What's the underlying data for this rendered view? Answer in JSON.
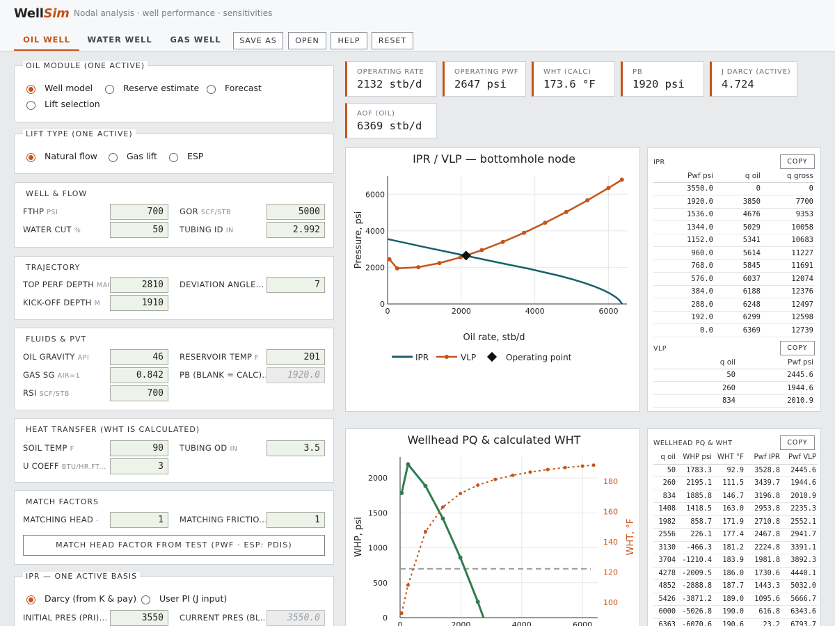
{
  "header": {
    "logo_part1": "Well",
    "logo_part2": "Sim",
    "subtitle": "Nodal analysis · well performance · sensitivities",
    "tabs": [
      {
        "label": "OIL WELL",
        "active": true
      },
      {
        "label": "WATER WELL",
        "active": false
      },
      {
        "label": "GAS WELL",
        "active": false
      }
    ],
    "buttons": [
      "SAVE AS",
      "OPEN",
      "HELP",
      "RESET"
    ]
  },
  "oil_module": {
    "title": "OIL MODULE (ONE ACTIVE)",
    "options": [
      {
        "label": "Well model",
        "selected": true
      },
      {
        "label": "Reserve estimate",
        "selected": false
      },
      {
        "label": "Forecast",
        "selected": false
      },
      {
        "label": "Lift selection",
        "selected": false
      }
    ]
  },
  "lift_type": {
    "title": "LIFT TYPE (ONE ACTIVE)",
    "options": [
      {
        "label": "Natural flow",
        "selected": true
      },
      {
        "label": "Gas lift",
        "selected": false
      },
      {
        "label": "ESP",
        "selected": false
      }
    ]
  },
  "well_flow": {
    "title": "WELL & FLOW",
    "fields": [
      {
        "label": "FTHP",
        "unit": "PSI",
        "value": "700"
      },
      {
        "label": "GOR",
        "unit": "SCF/STB",
        "value": "5000"
      },
      {
        "label": "WATER CUT",
        "unit": "%",
        "value": "50"
      },
      {
        "label": "TUBING ID",
        "unit": "IN",
        "value": "2.992"
      }
    ]
  },
  "trajectory": {
    "title": "TRAJECTORY",
    "fields": [
      {
        "label": "TOP PERF DEPTH",
        "unit": "MAH",
        "value": "2810"
      },
      {
        "label": "DEVIATION ANGLE...",
        "unit": "",
        "value": "7"
      },
      {
        "label": "KICK-OFF DEPTH",
        "unit": "M",
        "value": "1910"
      }
    ]
  },
  "fluids": {
    "title": "FLUIDS & PVT",
    "fields": [
      {
        "label": "OIL GRAVITY",
        "unit": "API",
        "value": "46"
      },
      {
        "label": "RESERVOIR TEMP",
        "unit": "F",
        "value": "201"
      },
      {
        "label": "GAS SG",
        "unit": "AIR=1",
        "value": "0.842"
      },
      {
        "label": "PB (BLANK = CALC)...",
        "unit": "",
        "value": "",
        "placeholder": "1920.0"
      },
      {
        "label": "RSI",
        "unit": "SCF/STB",
        "value": "700"
      }
    ]
  },
  "heat": {
    "title": "HEAT TRANSFER (WHT IS CALCULATED)",
    "fields": [
      {
        "label": "SOIL TEMP",
        "unit": "F",
        "value": "90"
      },
      {
        "label": "TUBING OD",
        "unit": "IN",
        "value": "3.5"
      },
      {
        "label": "U COEFF",
        "unit": "BTU/HR.FT...",
        "value": "3"
      }
    ]
  },
  "match": {
    "title": "MATCH FACTORS",
    "fields": [
      {
        "label": "MATCHING HEAD",
        "unit": "-",
        "value": "1"
      },
      {
        "label": "MATCHING FRICTIO...",
        "unit": "",
        "value": "1"
      }
    ],
    "button": "MATCH HEAD FACTOR FROM TEST (PWF · ESP: PDIS)"
  },
  "ipr_basis": {
    "title": "IPR — ONE ACTIVE BASIS",
    "options": [
      {
        "label": "Darcy (from K & pay)",
        "selected": true
      },
      {
        "label": "User PI (J input)",
        "selected": false
      }
    ],
    "fields": [
      {
        "label": "INITIAL PRES (PRI)...",
        "unit": "",
        "value": "3550"
      },
      {
        "label": "CURRENT PRES (BL...",
        "unit": "",
        "value": "",
        "placeholder": "3550.0"
      }
    ]
  },
  "cards": [
    {
      "label": "OPERATING RATE",
      "value": "2132 stb/d"
    },
    {
      "label": "OPERATING PWF",
      "value": "2647 psi"
    },
    {
      "label": "WHT (CALC)",
      "value": "173.6 °F"
    },
    {
      "label": "PB",
      "value": "1920 psi"
    },
    {
      "label": "J DARCY (ACTIVE)",
      "value": "4.724"
    },
    {
      "label": "AOF (OIL)",
      "value": "6369 stb/d"
    }
  ],
  "ipr_table": {
    "title": "IPR",
    "copy": "COPY",
    "headers": [
      "Pwf psi",
      "q oil",
      "q gross"
    ],
    "rows": [
      [
        "3550.0",
        "0",
        "0"
      ],
      [
        "1920.0",
        "3850",
        "7700"
      ],
      [
        "1536.0",
        "4676",
        "9353"
      ],
      [
        "1344.0",
        "5029",
        "10058"
      ],
      [
        "1152.0",
        "5341",
        "10683"
      ],
      [
        "960.0",
        "5614",
        "11227"
      ],
      [
        "768.0",
        "5845",
        "11691"
      ],
      [
        "576.0",
        "6037",
        "12074"
      ],
      [
        "384.0",
        "6188",
        "12376"
      ],
      [
        "288.0",
        "6248",
        "12497"
      ],
      [
        "192.0",
        "6299",
        "12598"
      ],
      [
        "0.0",
        "6369",
        "12739"
      ]
    ]
  },
  "vlp_table": {
    "title": "VLP",
    "copy": "COPY",
    "headers": [
      "q oil",
      "Pwf psi"
    ],
    "rows": [
      [
        "50",
        "2445.6"
      ],
      [
        "260",
        "1944.6"
      ],
      [
        "834",
        "2010.9"
      ]
    ]
  },
  "pq_table": {
    "title": "WELLHEAD PQ & WHT",
    "copy": "COPY",
    "headers": [
      "q oil",
      "WHP psi",
      "WHT °F",
      "Pwf IPR",
      "Pwf VLP"
    ],
    "rows": [
      [
        "50",
        "1783.3",
        "92.9",
        "3528.8",
        "2445.6"
      ],
      [
        "260",
        "2195.1",
        "111.5",
        "3439.7",
        "1944.6"
      ],
      [
        "834",
        "1885.8",
        "146.7",
        "3196.8",
        "2010.9"
      ],
      [
        "1408",
        "1418.5",
        "163.0",
        "2953.8",
        "2235.3"
      ],
      [
        "1982",
        "858.7",
        "171.9",
        "2710.8",
        "2552.1"
      ],
      [
        "2556",
        "226.1",
        "177.4",
        "2467.8",
        "2941.7"
      ],
      [
        "3130",
        "-466.3",
        "181.2",
        "2224.8",
        "3391.1"
      ],
      [
        "3704",
        "-1210.4",
        "183.9",
        "1981.8",
        "3892.3"
      ],
      [
        "4278",
        "-2009.5",
        "186.0",
        "1730.6",
        "4440.1"
      ],
      [
        "4852",
        "-2888.8",
        "187.7",
        "1443.3",
        "5032.0"
      ],
      [
        "5426",
        "-3871.2",
        "189.0",
        "1095.6",
        "5666.7"
      ],
      [
        "6000",
        "-5026.8",
        "190.0",
        "616.8",
        "6343.6"
      ],
      [
        "6363",
        "-6070.6",
        "190.6",
        "23.2",
        "6793.7"
      ]
    ]
  },
  "chart_data": [
    {
      "type": "line",
      "title": "IPR / VLP — bottomhole node",
      "xlabel": "Oil rate, stb/d",
      "ylabel": "Pressure, psi",
      "xlim": [
        0,
        6500
      ],
      "ylim": [
        0,
        7000
      ],
      "xticks": [
        "0",
        "2000",
        "4000",
        "6000"
      ],
      "yticks": [
        "0",
        "2000",
        "4000",
        "6000"
      ],
      "grid": true,
      "legend": "bottom",
      "series": [
        {
          "name": "IPR",
          "color": "#17606b",
          "markers": false,
          "x": [
            0,
            1000,
            2000,
            3000,
            3850,
            4676,
            5029,
            5341,
            5614,
            5845,
            6037,
            6188,
            6248,
            6299,
            6369
          ],
          "y": [
            3550,
            3113,
            2691,
            2267,
            1920,
            1536,
            1344,
            1152,
            960,
            768,
            576,
            384,
            288,
            192,
            0
          ]
        },
        {
          "name": "VLP",
          "color": "#c4541a",
          "markers": true,
          "x": [
            50,
            260,
            834,
            1408,
            1982,
            2556,
            3130,
            3704,
            4278,
            4852,
            5426,
            6000,
            6363
          ],
          "y": [
            2445.6,
            1944.6,
            2010.9,
            2235.3,
            2552.1,
            2941.7,
            3391.1,
            3892.3,
            4440.1,
            5032.0,
            5666.7,
            6343.6,
            6793.7
          ]
        }
      ],
      "operating_point": {
        "name": "Operating point",
        "x": 2132,
        "y": 2647
      }
    },
    {
      "type": "line",
      "title": "Wellhead PQ & calculated WHT",
      "ylabel": "WHP, psi",
      "y2label": "WHT, °F",
      "xlim": [
        0,
        6500
      ],
      "ylim": [
        0,
        2300
      ],
      "y2lim": [
        90,
        196
      ],
      "xticks": [
        "0",
        "2000",
        "4000",
        "6000"
      ],
      "yticks": [
        "0",
        "500",
        "1000",
        "1500",
        "2000"
      ],
      "y2ticks": [
        "100",
        "120",
        "140",
        "160",
        "180"
      ],
      "ftp_line": 700,
      "series": [
        {
          "name": "WHP",
          "color": "#2e7d4e",
          "x": [
            50,
            260,
            834,
            1408,
            1982,
            2556,
            3130
          ],
          "y": [
            1783.3,
            2195.1,
            1885.8,
            1418.5,
            858.7,
            226.1,
            -466.3
          ]
        },
        {
          "name": "WHT",
          "color": "#c4541a",
          "axis": "y2",
          "x": [
            50,
            260,
            834,
            1408,
            1982,
            2556,
            3130,
            3704,
            4278,
            4852,
            5426,
            6000,
            6363
          ],
          "y": [
            92.9,
            111.5,
            146.7,
            163.0,
            171.9,
            177.4,
            181.2,
            183.9,
            186.0,
            187.7,
            189.0,
            190.0,
            190.6
          ]
        }
      ]
    }
  ]
}
